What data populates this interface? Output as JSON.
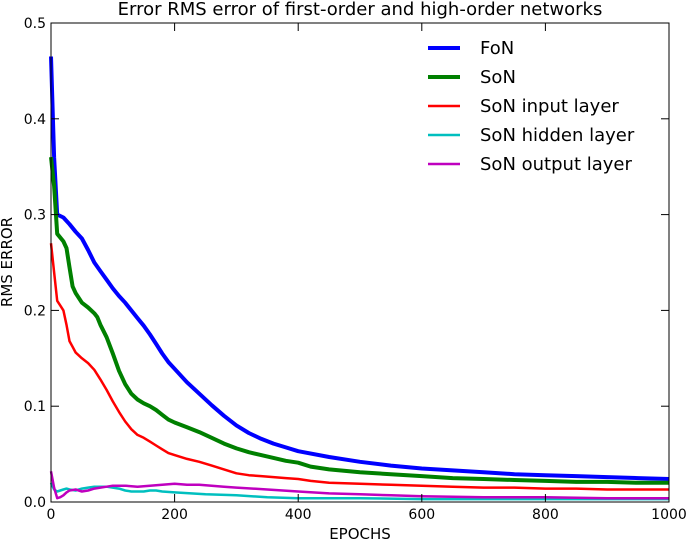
{
  "chart_data": {
    "type": "line",
    "title": "Error RMS error of first-order and high-order networks",
    "xlabel": "EPOCHS",
    "ylabel": "RMS ERROR",
    "xlim": [
      0,
      1000
    ],
    "ylim": [
      0,
      0.5
    ],
    "xticks": [
      0,
      200,
      400,
      600,
      800,
      1000
    ],
    "yticks": [
      0.0,
      0.1,
      0.2,
      0.3,
      0.4,
      0.5
    ],
    "xtick_labels": [
      "0",
      "200",
      "400",
      "600",
      "800",
      "1000"
    ],
    "ytick_labels": [
      "0.0",
      "0.1",
      "0.2",
      "0.3",
      "0.4",
      "0.5"
    ],
    "grid": false,
    "legend_position": "top-right",
    "series": [
      {
        "name": "FoN",
        "color": "#0000ff",
        "thick": true,
        "points": [
          [
            0,
            0.465
          ],
          [
            5,
            0.36
          ],
          [
            10,
            0.3
          ],
          [
            20,
            0.297
          ],
          [
            30,
            0.29
          ],
          [
            40,
            0.282
          ],
          [
            50,
            0.275
          ],
          [
            60,
            0.263
          ],
          [
            70,
            0.25
          ],
          [
            80,
            0.241
          ],
          [
            90,
            0.232
          ],
          [
            100,
            0.223
          ],
          [
            110,
            0.215
          ],
          [
            120,
            0.208
          ],
          [
            130,
            0.2
          ],
          [
            140,
            0.192
          ],
          [
            150,
            0.184
          ],
          [
            160,
            0.175
          ],
          [
            170,
            0.165
          ],
          [
            180,
            0.155
          ],
          [
            190,
            0.146
          ],
          [
            200,
            0.139
          ],
          [
            220,
            0.125
          ],
          [
            240,
            0.113
          ],
          [
            260,
            0.101
          ],
          [
            280,
            0.09
          ],
          [
            300,
            0.08
          ],
          [
            320,
            0.072
          ],
          [
            340,
            0.066
          ],
          [
            360,
            0.061
          ],
          [
            380,
            0.057
          ],
          [
            400,
            0.053
          ],
          [
            450,
            0.047
          ],
          [
            500,
            0.042
          ],
          [
            550,
            0.038
          ],
          [
            600,
            0.035
          ],
          [
            650,
            0.033
          ],
          [
            700,
            0.031
          ],
          [
            750,
            0.029
          ],
          [
            800,
            0.028
          ],
          [
            850,
            0.027
          ],
          [
            900,
            0.026
          ],
          [
            950,
            0.025
          ],
          [
            1000,
            0.024
          ]
        ]
      },
      {
        "name": "SoN",
        "color": "#008000",
        "thick": true,
        "points": [
          [
            0,
            0.36
          ],
          [
            5,
            0.33
          ],
          [
            10,
            0.28
          ],
          [
            20,
            0.272
          ],
          [
            25,
            0.265
          ],
          [
            30,
            0.245
          ],
          [
            35,
            0.225
          ],
          [
            40,
            0.218
          ],
          [
            50,
            0.208
          ],
          [
            60,
            0.203
          ],
          [
            70,
            0.197
          ],
          [
            75,
            0.193
          ],
          [
            80,
            0.185
          ],
          [
            90,
            0.172
          ],
          [
            100,
            0.155
          ],
          [
            110,
            0.137
          ],
          [
            120,
            0.123
          ],
          [
            130,
            0.113
          ],
          [
            140,
            0.107
          ],
          [
            150,
            0.103
          ],
          [
            160,
            0.1
          ],
          [
            170,
            0.096
          ],
          [
            180,
            0.091
          ],
          [
            190,
            0.086
          ],
          [
            200,
            0.083
          ],
          [
            220,
            0.078
          ],
          [
            240,
            0.073
          ],
          [
            260,
            0.067
          ],
          [
            280,
            0.061
          ],
          [
            300,
            0.056
          ],
          [
            320,
            0.052
          ],
          [
            340,
            0.049
          ],
          [
            360,
            0.046
          ],
          [
            380,
            0.043
          ],
          [
            400,
            0.041
          ],
          [
            420,
            0.037
          ],
          [
            450,
            0.034
          ],
          [
            500,
            0.031
          ],
          [
            550,
            0.029
          ],
          [
            600,
            0.027
          ],
          [
            650,
            0.025
          ],
          [
            700,
            0.024
          ],
          [
            750,
            0.023
          ],
          [
            800,
            0.022
          ],
          [
            850,
            0.021
          ],
          [
            900,
            0.021
          ],
          [
            950,
            0.02
          ],
          [
            1000,
            0.02
          ]
        ]
      },
      {
        "name": "SoN input layer",
        "color": "#ff0000",
        "thick": false,
        "points": [
          [
            0,
            0.27
          ],
          [
            5,
            0.24
          ],
          [
            10,
            0.21
          ],
          [
            15,
            0.205
          ],
          [
            20,
            0.2
          ],
          [
            25,
            0.185
          ],
          [
            30,
            0.168
          ],
          [
            35,
            0.162
          ],
          [
            40,
            0.156
          ],
          [
            50,
            0.15
          ],
          [
            60,
            0.145
          ],
          [
            70,
            0.138
          ],
          [
            80,
            0.128
          ],
          [
            90,
            0.117
          ],
          [
            100,
            0.105
          ],
          [
            110,
            0.094
          ],
          [
            120,
            0.084
          ],
          [
            130,
            0.076
          ],
          [
            140,
            0.07
          ],
          [
            150,
            0.067
          ],
          [
            160,
            0.063
          ],
          [
            170,
            0.059
          ],
          [
            180,
            0.055
          ],
          [
            190,
            0.051
          ],
          [
            200,
            0.049
          ],
          [
            220,
            0.045
          ],
          [
            240,
            0.042
          ],
          [
            260,
            0.038
          ],
          [
            280,
            0.034
          ],
          [
            300,
            0.03
          ],
          [
            320,
            0.028
          ],
          [
            340,
            0.027
          ],
          [
            360,
            0.026
          ],
          [
            380,
            0.025
          ],
          [
            400,
            0.024
          ],
          [
            420,
            0.022
          ],
          [
            450,
            0.02
          ],
          [
            500,
            0.019
          ],
          [
            550,
            0.018
          ],
          [
            600,
            0.017
          ],
          [
            650,
            0.016
          ],
          [
            700,
            0.015
          ],
          [
            750,
            0.015
          ],
          [
            800,
            0.014
          ],
          [
            850,
            0.014
          ],
          [
            900,
            0.013
          ],
          [
            950,
            0.013
          ],
          [
            1000,
            0.013
          ]
        ]
      },
      {
        "name": "SoN hidden layer",
        "color": "#00bfbf",
        "thick": false,
        "points": [
          [
            0,
            0.02
          ],
          [
            5,
            0.013
          ],
          [
            10,
            0.011
          ],
          [
            15,
            0.012
          ],
          [
            20,
            0.013
          ],
          [
            25,
            0.014
          ],
          [
            30,
            0.013
          ],
          [
            40,
            0.012
          ],
          [
            50,
            0.014
          ],
          [
            60,
            0.015
          ],
          [
            70,
            0.016
          ],
          [
            80,
            0.016
          ],
          [
            90,
            0.016
          ],
          [
            100,
            0.015
          ],
          [
            110,
            0.014
          ],
          [
            120,
            0.012
          ],
          [
            130,
            0.011
          ],
          [
            140,
            0.011
          ],
          [
            150,
            0.011
          ],
          [
            160,
            0.012
          ],
          [
            170,
            0.012
          ],
          [
            180,
            0.011
          ],
          [
            200,
            0.01
          ],
          [
            250,
            0.008
          ],
          [
            300,
            0.007
          ],
          [
            350,
            0.005
          ],
          [
            400,
            0.004
          ],
          [
            500,
            0.004
          ],
          [
            600,
            0.003
          ],
          [
            700,
            0.003
          ],
          [
            800,
            0.003
          ],
          [
            900,
            0.003
          ],
          [
            1000,
            0.003
          ]
        ]
      },
      {
        "name": "SoN output layer",
        "color": "#bf00bf",
        "thick": false,
        "points": [
          [
            0,
            0.032
          ],
          [
            5,
            0.015
          ],
          [
            10,
            0.004
          ],
          [
            15,
            0.005
          ],
          [
            20,
            0.007
          ],
          [
            25,
            0.01
          ],
          [
            30,
            0.012
          ],
          [
            40,
            0.013
          ],
          [
            50,
            0.011
          ],
          [
            60,
            0.012
          ],
          [
            70,
            0.014
          ],
          [
            80,
            0.015
          ],
          [
            90,
            0.016
          ],
          [
            100,
            0.017
          ],
          [
            120,
            0.017
          ],
          [
            140,
            0.016
          ],
          [
            160,
            0.017
          ],
          [
            180,
            0.018
          ],
          [
            200,
            0.019
          ],
          [
            220,
            0.018
          ],
          [
            240,
            0.018
          ],
          [
            260,
            0.017
          ],
          [
            280,
            0.016
          ],
          [
            300,
            0.015
          ],
          [
            350,
            0.013
          ],
          [
            400,
            0.011
          ],
          [
            450,
            0.009
          ],
          [
            500,
            0.008
          ],
          [
            550,
            0.007
          ],
          [
            600,
            0.006
          ],
          [
            700,
            0.005
          ],
          [
            800,
            0.005
          ],
          [
            900,
            0.004
          ],
          [
            1000,
            0.004
          ]
        ]
      }
    ]
  }
}
